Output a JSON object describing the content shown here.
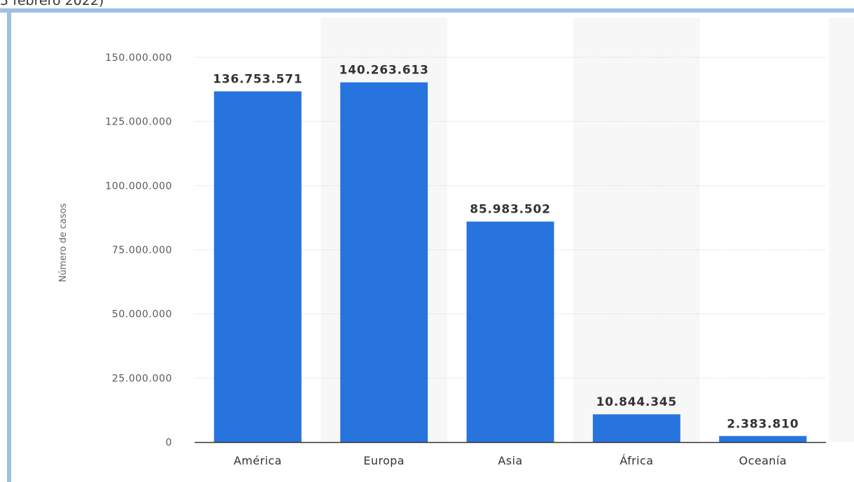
{
  "caption_fragment": "5 febrero 2022)",
  "colors": {
    "bar": "#2874df",
    "frame": "#9ec1e3",
    "band": "#f7f7f7",
    "grid": "#cccccc",
    "axis": "#333333"
  },
  "chart_data": {
    "type": "bar",
    "categories": [
      "América",
      "Europa",
      "Asia",
      "África",
      "Oceanía"
    ],
    "values": [
      136753571,
      140263613,
      85983502,
      10844345,
      2383810
    ],
    "value_labels": [
      "136.753.571",
      "140.263.613",
      "85.983.502",
      "10.844.345",
      "2.383.810"
    ],
    "ylabel": "Número de casos",
    "xlabel": "",
    "ylim": [
      0,
      150000000
    ],
    "yticks": [
      0,
      25000000,
      50000000,
      75000000,
      100000000,
      125000000,
      150000000
    ],
    "ytick_labels": [
      "0",
      "25.000.000",
      "50.000.000",
      "75.000.000",
      "100.000.000",
      "125.000.000",
      "150.000.000"
    ],
    "grid": true,
    "alternating_bands": true
  }
}
